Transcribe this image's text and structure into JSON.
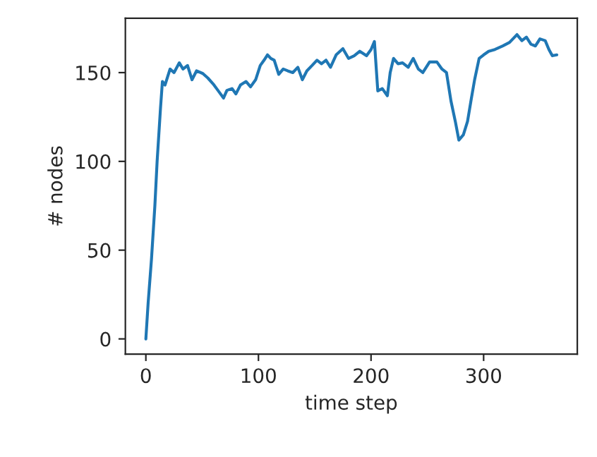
{
  "chart_data": {
    "type": "line",
    "xlabel": "time step",
    "ylabel": "# nodes",
    "x": [
      0,
      2,
      5,
      8,
      10,
      13,
      14.7,
      17,
      21.5,
      25,
      29.7,
      33,
      37,
      41,
      45,
      50.6,
      55,
      59.8,
      64,
      69,
      72,
      76.5,
      80,
      84,
      89,
      93,
      97.5,
      101.6,
      105,
      108,
      111,
      114,
      118,
      122,
      126,
      130.5,
      135,
      139,
      143,
      147.6,
      152,
      156,
      160,
      164,
      169,
      175,
      180,
      185,
      190,
      196,
      200,
      203,
      206,
      210,
      214.5,
      217,
      220,
      224,
      228,
      233,
      237.5,
      242,
      246,
      252,
      258.5,
      263,
      267,
      271,
      275,
      278,
      282,
      285.7,
      289,
      292,
      296,
      300,
      304.5,
      310,
      317,
      323,
      329.6,
      334,
      338,
      342,
      346,
      350,
      354.7,
      358,
      361,
      365
    ],
    "series": [
      {
        "color": "#1f77b4",
        "values": [
          0,
          20,
          45,
          75,
          100,
          130,
          145,
          143,
          152,
          150,
          155.5,
          152,
          154,
          146,
          151,
          149.5,
          147,
          143.6,
          140,
          135.7,
          140,
          141,
          138,
          143,
          145,
          142,
          146,
          154,
          157,
          160,
          158,
          157,
          149,
          152,
          151,
          150,
          153,
          146,
          151,
          154,
          157,
          155,
          157,
          153,
          160,
          163.5,
          158,
          159.5,
          162,
          159.5,
          163,
          167.5,
          139.7,
          141,
          137,
          150,
          158,
          155,
          155.5,
          153,
          158,
          152,
          150,
          156,
          156,
          152,
          150,
          134,
          122,
          112,
          115,
          122.5,
          135,
          146,
          158,
          160,
          162,
          163,
          165,
          167,
          171.4,
          168,
          170,
          166,
          165,
          169,
          168,
          163,
          159.5,
          160
        ]
      }
    ],
    "xlim": [
      -18.2,
      383.2
    ],
    "ylim": [
      -8.6,
      180.6
    ],
    "xticks": [
      0,
      100,
      200,
      300
    ],
    "yticks": [
      0,
      50,
      100,
      150
    ],
    "grid": false,
    "legend": false
  }
}
